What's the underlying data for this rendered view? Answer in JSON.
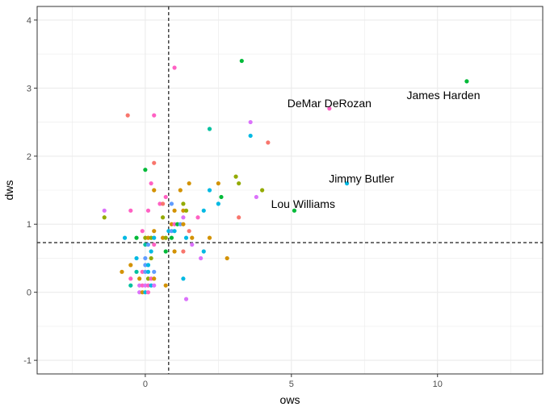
{
  "chart_data": {
    "type": "scatter",
    "title": "",
    "xlabel": "ows",
    "ylabel": "dws",
    "xlim": [
      -3.7,
      13.6
    ],
    "ylim": [
      -1.2,
      4.2
    ],
    "x_ticks": [
      0,
      5,
      10
    ],
    "y_ticks": [
      -1,
      0,
      1,
      2,
      3,
      4
    ],
    "x_tick_labels": [
      "0",
      "5",
      "10"
    ],
    "y_tick_labels": [
      "-1",
      "0",
      "1",
      "2",
      "3",
      "4"
    ],
    "grid": true,
    "legend": "none",
    "reference_lines": {
      "vline_x": 0.8,
      "hline_y": 0.73
    },
    "palette": [
      "#F8766D",
      "#D39200",
      "#93AA00",
      "#00BA38",
      "#00C19F",
      "#00B9E3",
      "#619CFF",
      "#DB72FB",
      "#FF61C3"
    ],
    "points": [
      {
        "x": 11.0,
        "y": 3.1,
        "c": 3
      },
      {
        "x": 6.3,
        "y": 2.7,
        "c": 8
      },
      {
        "x": 6.9,
        "y": 1.6,
        "c": 5
      },
      {
        "x": 5.1,
        "y": 1.2,
        "c": 3
      },
      {
        "x": 3.3,
        "y": 3.4,
        "c": 3
      },
      {
        "x": 1.0,
        "y": 3.3,
        "c": 8
      },
      {
        "x": -0.6,
        "y": 2.6,
        "c": 0
      },
      {
        "x": 0.3,
        "y": 2.6,
        "c": 8
      },
      {
        "x": 3.6,
        "y": 2.5,
        "c": 7
      },
      {
        "x": 2.2,
        "y": 2.4,
        "c": 4
      },
      {
        "x": 3.6,
        "y": 2.3,
        "c": 5
      },
      {
        "x": 4.2,
        "y": 2.2,
        "c": 0
      },
      {
        "x": 0.3,
        "y": 1.9,
        "c": 0
      },
      {
        "x": 0.0,
        "y": 1.8,
        "c": 3
      },
      {
        "x": 3.1,
        "y": 1.7,
        "c": 2
      },
      {
        "x": 0.2,
        "y": 1.6,
        "c": 8
      },
      {
        "x": 1.5,
        "y": 1.6,
        "c": 1
      },
      {
        "x": 2.5,
        "y": 1.6,
        "c": 1
      },
      {
        "x": 3.2,
        "y": 1.6,
        "c": 2
      },
      {
        "x": 0.3,
        "y": 1.5,
        "c": 1
      },
      {
        "x": 1.2,
        "y": 1.5,
        "c": 1
      },
      {
        "x": 2.2,
        "y": 1.5,
        "c": 5
      },
      {
        "x": 4.0,
        "y": 1.5,
        "c": 2
      },
      {
        "x": 0.7,
        "y": 1.4,
        "c": 8
      },
      {
        "x": 2.6,
        "y": 1.4,
        "c": 3
      },
      {
        "x": 3.8,
        "y": 1.4,
        "c": 7
      },
      {
        "x": 0.5,
        "y": 1.3,
        "c": 8
      },
      {
        "x": 0.6,
        "y": 1.3,
        "c": 0
      },
      {
        "x": 0.9,
        "y": 1.3,
        "c": 6
      },
      {
        "x": 1.3,
        "y": 1.3,
        "c": 2
      },
      {
        "x": 2.5,
        "y": 1.3,
        "c": 5
      },
      {
        "x": -1.4,
        "y": 1.2,
        "c": 7
      },
      {
        "x": -0.5,
        "y": 1.2,
        "c": 8
      },
      {
        "x": 0.1,
        "y": 1.2,
        "c": 8
      },
      {
        "x": 1.0,
        "y": 1.2,
        "c": 1
      },
      {
        "x": 1.3,
        "y": 1.2,
        "c": 1
      },
      {
        "x": 1.4,
        "y": 1.2,
        "c": 2
      },
      {
        "x": 2.0,
        "y": 1.2,
        "c": 5
      },
      {
        "x": -1.4,
        "y": 1.1,
        "c": 2
      },
      {
        "x": 0.6,
        "y": 1.1,
        "c": 2
      },
      {
        "x": 1.3,
        "y": 1.1,
        "c": 7
      },
      {
        "x": 1.8,
        "y": 1.1,
        "c": 8
      },
      {
        "x": 3.2,
        "y": 1.1,
        "c": 0
      },
      {
        "x": 0.9,
        "y": 1.0,
        "c": 1
      },
      {
        "x": 1.0,
        "y": 1.0,
        "c": 8
      },
      {
        "x": 1.1,
        "y": 1.0,
        "c": 3
      },
      {
        "x": 1.2,
        "y": 1.0,
        "c": 6
      },
      {
        "x": 1.3,
        "y": 1.0,
        "c": 1
      },
      {
        "x": 0.8,
        "y": 0.9,
        "c": 5
      },
      {
        "x": 0.9,
        "y": 0.9,
        "c": 6
      },
      {
        "x": 1.0,
        "y": 0.9,
        "c": 5
      },
      {
        "x": 1.5,
        "y": 0.9,
        "c": 0
      },
      {
        "x": -0.1,
        "y": 0.9,
        "c": 8
      },
      {
        "x": 0.3,
        "y": 0.9,
        "c": 1
      },
      {
        "x": -0.7,
        "y": 0.8,
        "c": 5
      },
      {
        "x": -0.3,
        "y": 0.8,
        "c": 3
      },
      {
        "x": 0.0,
        "y": 0.8,
        "c": 2
      },
      {
        "x": 0.1,
        "y": 0.8,
        "c": 1
      },
      {
        "x": 0.2,
        "y": 0.8,
        "c": 2
      },
      {
        "x": 0.3,
        "y": 0.8,
        "c": 5
      },
      {
        "x": 0.6,
        "y": 0.8,
        "c": 1
      },
      {
        "x": 0.7,
        "y": 0.8,
        "c": 2
      },
      {
        "x": 0.9,
        "y": 0.8,
        "c": 3
      },
      {
        "x": 1.4,
        "y": 0.8,
        "c": 5
      },
      {
        "x": 1.6,
        "y": 0.8,
        "c": 1
      },
      {
        "x": 2.2,
        "y": 0.8,
        "c": 1
      },
      {
        "x": 0.0,
        "y": 0.7,
        "c": 4
      },
      {
        "x": 0.1,
        "y": 0.7,
        "c": 6
      },
      {
        "x": 0.3,
        "y": 0.7,
        "c": 8
      },
      {
        "x": 1.6,
        "y": 0.7,
        "c": 7
      },
      {
        "x": 0.2,
        "y": 0.6,
        "c": 5
      },
      {
        "x": 0.7,
        "y": 0.6,
        "c": 3
      },
      {
        "x": 1.0,
        "y": 0.6,
        "c": 1
      },
      {
        "x": 1.3,
        "y": 0.6,
        "c": 0
      },
      {
        "x": 2.0,
        "y": 0.6,
        "c": 5
      },
      {
        "x": -0.3,
        "y": 0.5,
        "c": 5
      },
      {
        "x": 0.0,
        "y": 0.5,
        "c": 6
      },
      {
        "x": 0.2,
        "y": 0.5,
        "c": 2
      },
      {
        "x": 1.9,
        "y": 0.5,
        "c": 7
      },
      {
        "x": 2.8,
        "y": 0.5,
        "c": 1
      },
      {
        "x": -0.5,
        "y": 0.4,
        "c": 1
      },
      {
        "x": 0.0,
        "y": 0.4,
        "c": 6
      },
      {
        "x": 0.1,
        "y": 0.4,
        "c": 5
      },
      {
        "x": -0.8,
        "y": 0.3,
        "c": 1
      },
      {
        "x": -0.3,
        "y": 0.3,
        "c": 4
      },
      {
        "x": -0.1,
        "y": 0.3,
        "c": 8
      },
      {
        "x": 0.0,
        "y": 0.3,
        "c": 6
      },
      {
        "x": 0.1,
        "y": 0.3,
        "c": 5
      },
      {
        "x": 0.3,
        "y": 0.3,
        "c": 6
      },
      {
        "x": -0.5,
        "y": 0.2,
        "c": 8
      },
      {
        "x": -0.2,
        "y": 0.2,
        "c": 1
      },
      {
        "x": 0.1,
        "y": 0.2,
        "c": 2
      },
      {
        "x": 0.2,
        "y": 0.2,
        "c": 8
      },
      {
        "x": 0.3,
        "y": 0.2,
        "c": 1
      },
      {
        "x": 1.3,
        "y": 0.2,
        "c": 5
      },
      {
        "x": -0.5,
        "y": 0.1,
        "c": 4
      },
      {
        "x": -0.2,
        "y": 0.1,
        "c": 7
      },
      {
        "x": -0.1,
        "y": 0.1,
        "c": 8
      },
      {
        "x": 0.0,
        "y": 0.1,
        "c": 7
      },
      {
        "x": 0.1,
        "y": 0.1,
        "c": 8
      },
      {
        "x": 0.2,
        "y": 0.1,
        "c": 5
      },
      {
        "x": 0.3,
        "y": 0.1,
        "c": 7
      },
      {
        "x": 0.7,
        "y": 0.1,
        "c": 1
      },
      {
        "x": -0.2,
        "y": 0.0,
        "c": 7
      },
      {
        "x": -0.1,
        "y": 0.0,
        "c": 1
      },
      {
        "x": 0.0,
        "y": 0.0,
        "c": 5
      },
      {
        "x": 0.1,
        "y": 0.0,
        "c": 8
      },
      {
        "x": 1.4,
        "y": -0.1,
        "c": 7
      }
    ],
    "annotations": [
      {
        "text": "James Harden",
        "x": 10.2,
        "y": 2.9
      },
      {
        "text": "DeMar DeRozan",
        "x": 6.3,
        "y": 2.78
      },
      {
        "text": "Jimmy Butler",
        "x": 7.4,
        "y": 1.67
      },
      {
        "text": "Lou Williams",
        "x": 5.4,
        "y": 1.3
      }
    ]
  }
}
